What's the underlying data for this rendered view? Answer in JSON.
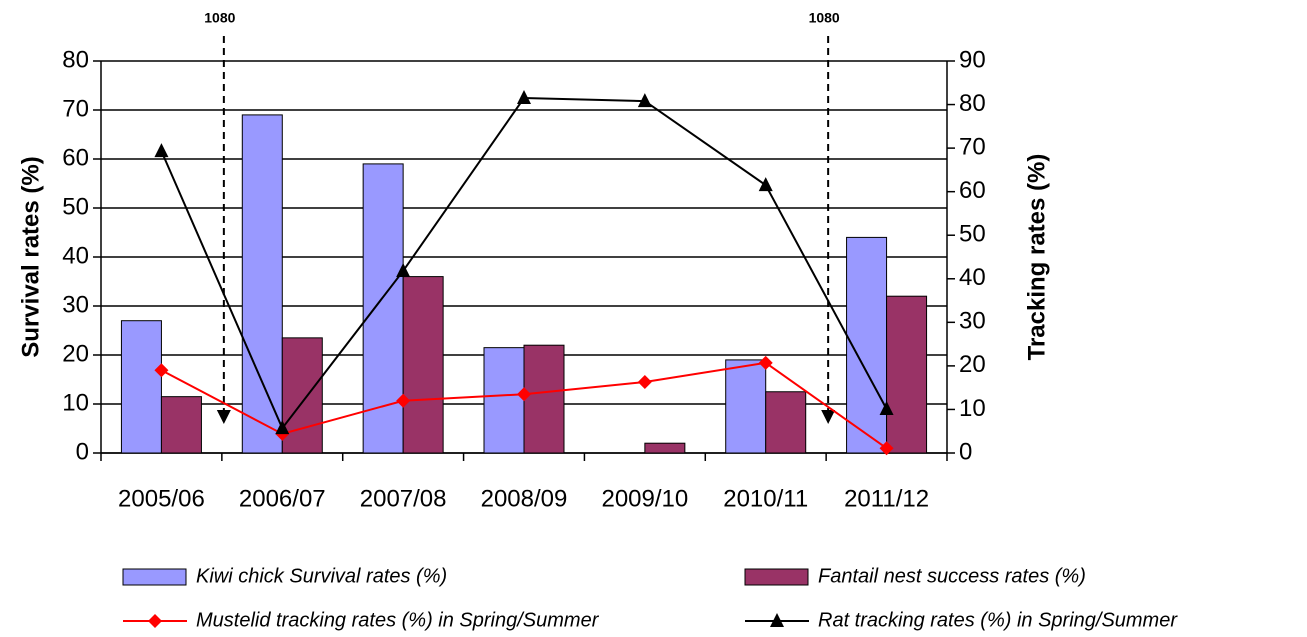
{
  "chart_data": {
    "type": "bar-line",
    "categories": [
      "2005/06",
      "2006/07",
      "2007/08",
      "2008/09",
      "2009/10",
      "2010/11",
      "2011/12"
    ],
    "series": [
      {
        "name": "Kiwi chick Survival rates (%)",
        "type": "bar",
        "color": "#9999ff",
        "values": [
          27,
          69,
          59,
          21.5,
          null,
          19,
          44
        ]
      },
      {
        "name": "Fantail nest success rates (%)",
        "type": "bar",
        "color": "#993366",
        "values": [
          11.5,
          23.5,
          36,
          22,
          2,
          12.5,
          32
        ]
      },
      {
        "name": "Mustelid tracking rates (%) in Spring/Summer",
        "type": "line",
        "axis": "y2",
        "marker": "diamond",
        "color": "#ff0000",
        "values": [
          19,
          4.4,
          12,
          13.5,
          16.3,
          20.7,
          1.1
        ]
      },
      {
        "name": "Rat tracking rates (%) in Spring/Summer",
        "type": "line",
        "axis": "y2",
        "marker": "triangle",
        "color": "#000000",
        "values": [
          69.3,
          5.7,
          41.8,
          81.5,
          80.8,
          61.5,
          10.1
        ]
      }
    ],
    "ylabel": "Survival rates (%)",
    "y2label": "Tracking rates (%)",
    "ylim": [
      0,
      80
    ],
    "yticks": [
      0,
      10,
      20,
      30,
      40,
      50,
      60,
      70,
      80
    ],
    "y2lim": [
      0,
      90
    ],
    "y2ticks": [
      0,
      10,
      20,
      30,
      40,
      50,
      60,
      70,
      80,
      90
    ],
    "grid": true,
    "annotations": [
      "1080",
      "1080"
    ]
  }
}
